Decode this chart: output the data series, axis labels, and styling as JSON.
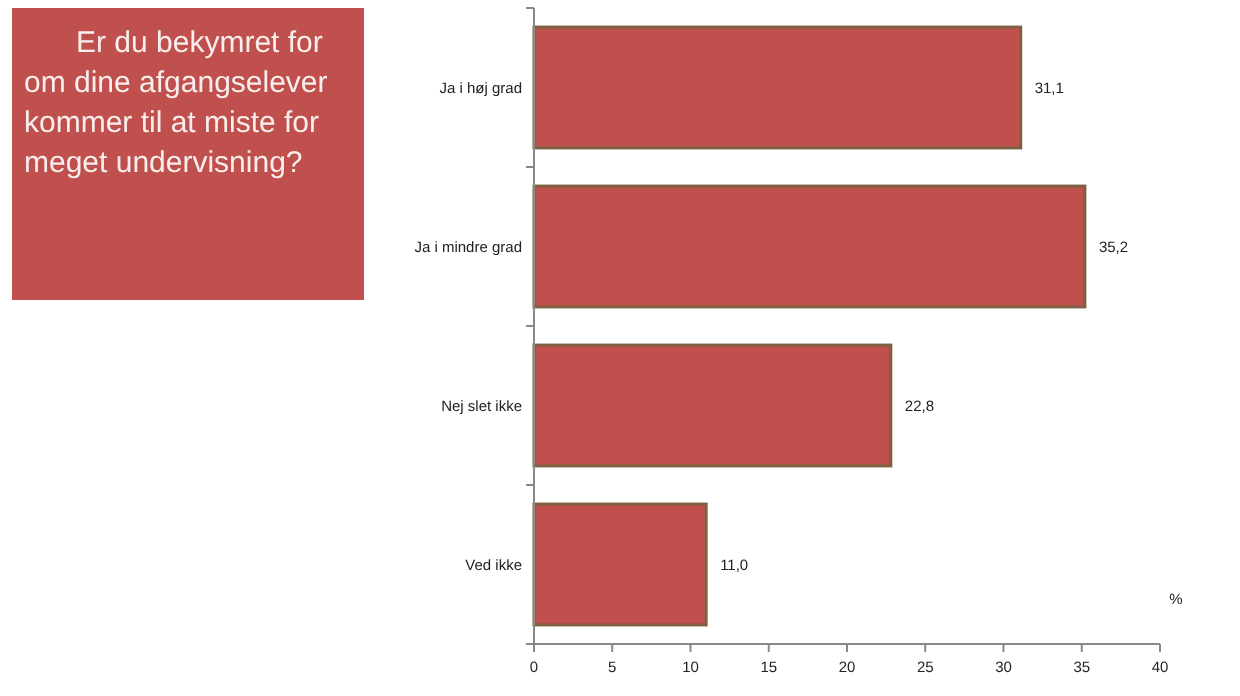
{
  "chart_data": {
    "type": "bar",
    "orientation": "horizontal",
    "title": "Er du bekymret for om dine afgangselever kommer til at miste for meget undervisning?",
    "categories": [
      "Ja i høj grad",
      "Ja i mindre grad",
      "Nej slet ikke",
      "Ved ikke"
    ],
    "values": [
      31.1,
      35.2,
      22.8,
      11.0
    ],
    "color": "#c0504d",
    "value_labels": [
      "31,1",
      "35,2",
      "22,8",
      "11,0"
    ],
    "xlabel": "%",
    "xlim": [
      0,
      40
    ],
    "xticks": [
      0,
      5,
      10,
      15,
      20,
      25,
      30,
      35,
      40
    ],
    "grid": false
  }
}
